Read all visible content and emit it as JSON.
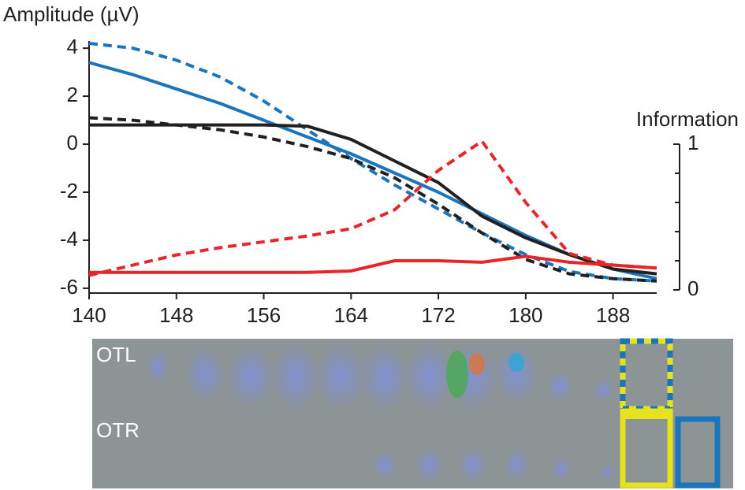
{
  "chart_data": {
    "type": "line",
    "y_label": "Amplitude (µV)",
    "y2_label": "Information",
    "x": [
      140,
      144,
      148,
      152,
      156,
      160,
      164,
      168,
      172,
      176,
      180,
      184,
      188,
      192
    ],
    "xlim": [
      140,
      192
    ],
    "xticks": [
      140,
      148,
      156,
      164,
      172,
      180,
      188
    ],
    "ylim": [
      -6.2,
      4.3
    ],
    "yticks": [
      -6,
      -4,
      -2,
      0,
      2,
      4
    ],
    "y2lim": [
      0,
      1
    ],
    "y2ticks": [
      0,
      1
    ],
    "y2minor": [
      0.2,
      0.4,
      0.6,
      0.8
    ],
    "series": [
      {
        "color": "#1a75bc",
        "dashed": false,
        "values": [
          3.4,
          2.9,
          2.3,
          1.7,
          1.0,
          0.3,
          -0.4,
          -1.2,
          -2.0,
          -2.9,
          -3.8,
          -4.6,
          -5.2,
          -5.6
        ]
      },
      {
        "color": "#1a75bc",
        "dashed": true,
        "values": [
          4.2,
          4.0,
          3.5,
          2.8,
          1.8,
          0.6,
          -0.6,
          -1.7,
          -2.7,
          -3.7,
          -4.6,
          -5.3,
          -5.6,
          -5.7
        ]
      },
      {
        "color": "#231f20",
        "dashed": false,
        "values": [
          0.8,
          0.8,
          0.8,
          0.8,
          0.8,
          0.75,
          0.2,
          -0.7,
          -1.6,
          -3.0,
          -3.9,
          -4.6,
          -5.2,
          -5.4
        ]
      },
      {
        "color": "#231f20",
        "dashed": true,
        "values": [
          1.1,
          1.0,
          0.8,
          0.6,
          0.3,
          -0.1,
          -0.6,
          -1.4,
          -2.5,
          -3.7,
          -4.8,
          -5.4,
          -5.6,
          -5.7
        ]
      },
      {
        "color": "#e8262a",
        "dashed": false,
        "axis": "y2",
        "values": [
          0.12,
          0.12,
          0.12,
          0.12,
          0.12,
          0.12,
          0.13,
          0.2,
          0.2,
          0.19,
          0.23,
          0.19,
          0.17,
          0.15
        ]
      },
      {
        "color": "#e8262a",
        "dashed": true,
        "axis": "y2",
        "values": [
          0.1,
          0.17,
          0.24,
          0.29,
          0.33,
          0.37,
          0.42,
          0.55,
          0.82,
          1.02,
          0.6,
          0.25,
          0.17,
          0.15
        ]
      }
    ],
    "panel_labels": [
      "OTL",
      "OTR"
    ]
  }
}
